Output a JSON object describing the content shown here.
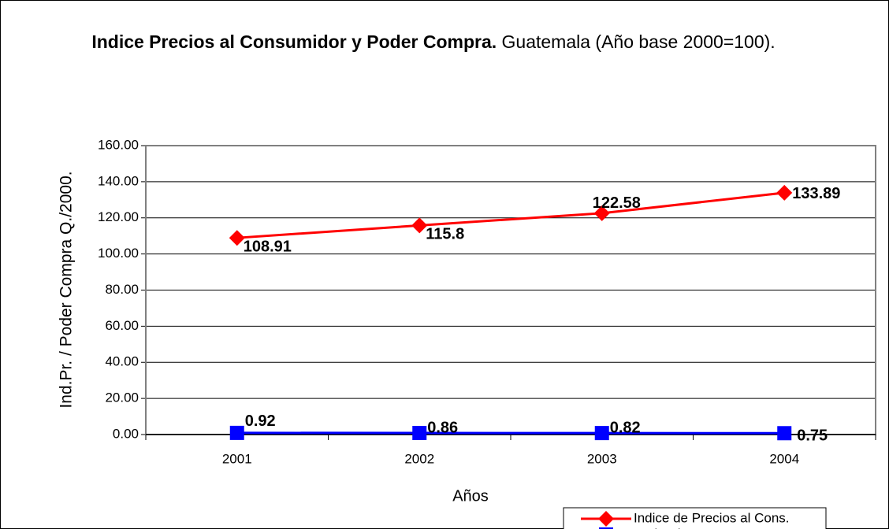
{
  "chart_data": {
    "type": "line",
    "title": "Indice Precios al Consumidor y Poder Compra.",
    "subtitle": "Guatemala (Año base 2000=100).",
    "y_label": "Ind.Pr. / Poder Compra Q./2000.",
    "x_label": "Años",
    "categories": [
      "2001",
      "2002",
      "2003",
      "2004"
    ],
    "series": [
      {
        "name": "Indice de Precios al Cons.",
        "color": "#ff0000",
        "marker": "diamond",
        "values": [
          108.91,
          115.8,
          122.58,
          133.89
        ]
      },
      {
        "name": "Poder de Compra",
        "color": "#0000ff",
        "marker": "square",
        "values": [
          0.92,
          0.86,
          0.82,
          0.75
        ]
      }
    ],
    "ylim": [
      0,
      160
    ],
    "yticks": [
      {
        "value": 0,
        "label": "0.00"
      },
      {
        "value": 20,
        "label": "20.00"
      },
      {
        "value": 40,
        "label": "40.00"
      },
      {
        "value": 60,
        "label": "60.00"
      },
      {
        "value": 80,
        "label": "80.00"
      },
      {
        "value": 100,
        "label": "100.00"
      },
      {
        "value": 120,
        "label": "120.00"
      },
      {
        "value": 140,
        "label": "140.00"
      },
      {
        "value": 160,
        "label": "160.00"
      }
    ],
    "grid": true,
    "legend": "bottom-right"
  }
}
